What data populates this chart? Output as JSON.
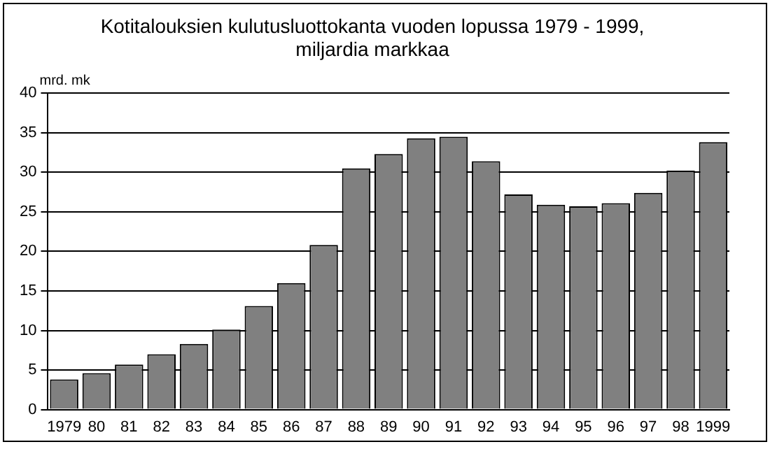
{
  "chart_data": {
    "type": "bar",
    "title": "Kotitalouksien kulutusluottokanta vuoden lopussa 1979 - 1999,\nmiljardia markkaa",
    "ylabel": "mrd. mk",
    "categories": [
      "1979",
      "80",
      "81",
      "82",
      "83",
      "84",
      "85",
      "86",
      "87",
      "88",
      "89",
      "90",
      "91",
      "92",
      "93",
      "94",
      "95",
      "96",
      "97",
      "98",
      "1999"
    ],
    "values": [
      3.8,
      4.6,
      5.7,
      7.0,
      8.3,
      10.1,
      13.1,
      16.0,
      20.8,
      30.5,
      32.3,
      34.3,
      34.5,
      31.4,
      27.2,
      25.9,
      25.7,
      26.1,
      27.4,
      30.2,
      33.8
    ],
    "color": "#808080",
    "ylim": [
      0,
      40
    ],
    "yticks": [
      0,
      5,
      10,
      15,
      20,
      25,
      30,
      35,
      40
    ],
    "grid": "y",
    "legend": false
  }
}
